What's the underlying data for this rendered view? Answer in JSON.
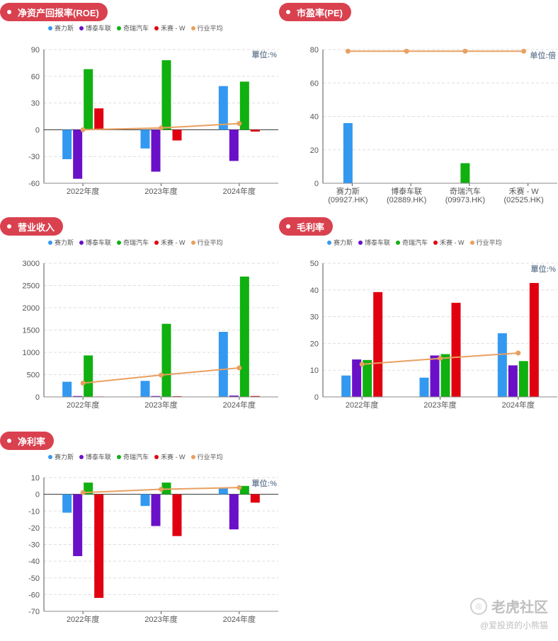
{
  "colors": {
    "accent": "#d9414f",
    "series": [
      "#3399f0",
      "#6a10c8",
      "#10b010",
      "#e00010",
      "#e8a060"
    ]
  },
  "legend_items": [
    "赛力斯",
    "博泰车联",
    "奇瑞汽车",
    "禾赛 - W",
    "行业平均"
  ],
  "watermark": {
    "brand": "老虎社区",
    "user": "@爱投资的小熊猫",
    "icon": "tiger-logo-icon"
  },
  "chart_data": [
    {
      "id": "roe",
      "type": "bar",
      "title": "净资产回报率(ROE)",
      "unit": "單位:%",
      "categories": [
        "2022年度",
        "2023年度",
        "2024年度"
      ],
      "series": [
        {
          "name": "赛力斯",
          "values": [
            -33,
            -21,
            49
          ]
        },
        {
          "name": "博泰车联",
          "values": [
            -55,
            -47,
            -35
          ]
        },
        {
          "name": "奇瑞汽车",
          "values": [
            68,
            78,
            54
          ]
        },
        {
          "name": "禾赛 - W",
          "values": [
            24,
            -12,
            -2
          ]
        }
      ],
      "average": {
        "name": "行业平均",
        "values": [
          0,
          2,
          7
        ]
      },
      "yticks": [
        90,
        60,
        30,
        0,
        -30,
        -60
      ],
      "ylim": [
        -60,
        90
      ]
    },
    {
      "id": "pe",
      "type": "bar",
      "title": "市盈率(PE)",
      "unit": "单位:倍",
      "categories": [
        "赛力斯",
        "博泰车联",
        "奇瑞汽车",
        "禾赛 - W"
      ],
      "category_codes": [
        "(09927.HK)",
        "(02889.HK)",
        "(09973.HK)",
        "(02525.HK)"
      ],
      "values": [
        36,
        0,
        12,
        0
      ],
      "average": {
        "name": "行业平均",
        "values": [
          79,
          79,
          79,
          79
        ]
      },
      "yticks": [
        80,
        60,
        40,
        20,
        0
      ],
      "ylim": [
        0,
        80
      ]
    },
    {
      "id": "revenue",
      "type": "bar",
      "title": "营业收入",
      "unit": "",
      "categories": [
        "2022年度",
        "2023年度",
        "2024年度"
      ],
      "series": [
        {
          "name": "赛力斯",
          "values": [
            340,
            360,
            1460
          ]
        },
        {
          "name": "博泰车联",
          "values": [
            20,
            20,
            30
          ]
        },
        {
          "name": "奇瑞汽车",
          "values": [
            930,
            1640,
            2700
          ]
        },
        {
          "name": "禾赛 - W",
          "values": [
            10,
            15,
            20
          ]
        }
      ],
      "average": {
        "name": "行业平均",
        "values": [
          310,
          490,
          650
        ]
      },
      "yticks": [
        3000,
        2500,
        2000,
        1500,
        1000,
        500,
        0
      ],
      "ylim": [
        0,
        3000
      ]
    },
    {
      "id": "gross",
      "type": "bar",
      "title": "毛利率",
      "unit": "單位:%",
      "categories": [
        "2022年度",
        "2023年度",
        "2024年度"
      ],
      "series": [
        {
          "name": "赛力斯",
          "values": [
            8,
            7.2,
            23.8
          ]
        },
        {
          "name": "博泰车联",
          "values": [
            14,
            15.5,
            11.8
          ]
        },
        {
          "name": "奇瑞汽车",
          "values": [
            13.8,
            16,
            13.4
          ]
        },
        {
          "name": "禾赛 - W",
          "values": [
            39.2,
            35.2,
            42.6
          ]
        }
      ],
      "average": {
        "name": "行业平均",
        "values": [
          12.2,
          14.4,
          16.4
        ]
      },
      "yticks": [
        50,
        40,
        30,
        20,
        10,
        0
      ],
      "ylim": [
        0,
        50
      ]
    },
    {
      "id": "net",
      "type": "bar",
      "title": "净利率",
      "unit": "單位:%",
      "categories": [
        "2022年度",
        "2023年度",
        "2024年度"
      ],
      "series": [
        {
          "name": "赛力斯",
          "values": [
            -11,
            -7,
            4
          ]
        },
        {
          "name": "博泰车联",
          "values": [
            -37,
            -19,
            -21
          ]
        },
        {
          "name": "奇瑞汽车",
          "values": [
            7,
            7,
            5
          ]
        },
        {
          "name": "禾赛 - W",
          "values": [
            -62,
            -25,
            -5
          ]
        }
      ],
      "average": {
        "name": "行业平均",
        "values": [
          1,
          3,
          4
        ]
      },
      "yticks": [
        10,
        0,
        -10,
        -20,
        -30,
        -40,
        -50,
        -60,
        -70
      ],
      "ylim": [
        -70,
        10
      ]
    }
  ]
}
